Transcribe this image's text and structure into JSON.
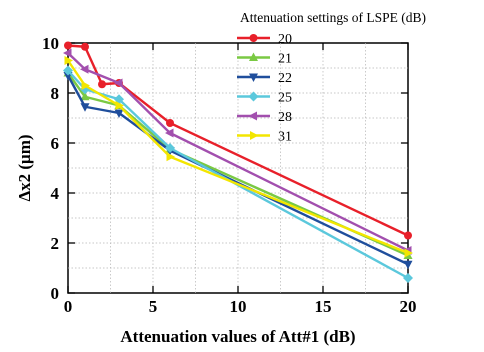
{
  "chart_data": {
    "type": "line",
    "xlabel": "Attenuation values of Att#1 (dB)",
    "ylabel": "Δx2 (μm)",
    "xlim": [
      0,
      20
    ],
    "ylim": [
      0,
      10
    ],
    "x_ticks": [
      "0",
      "5",
      "10",
      "15",
      "20"
    ],
    "y_ticks": [
      "0",
      "2",
      "4",
      "6",
      "8",
      "10"
    ],
    "grid": true,
    "legend_title": "Attenuation settings of LSPE (dB)",
    "legend_position": "top-right",
    "series": [
      {
        "name": "20",
        "color": "#e8202a",
        "marker": "circle",
        "x": [
          0,
          1,
          2,
          3,
          6,
          20
        ],
        "y": [
          9.9,
          9.85,
          8.35,
          8.4,
          6.8,
          2.3
        ]
      },
      {
        "name": "21",
        "color": "#7ac943",
        "marker": "triangle-up",
        "x": [
          0,
          1,
          3,
          6,
          20
        ],
        "y": [
          8.8,
          7.85,
          7.5,
          5.75,
          1.5
        ]
      },
      {
        "name": "22",
        "color": "#1f4e9c",
        "marker": "triangle-down",
        "x": [
          0,
          1,
          3,
          6,
          20
        ],
        "y": [
          8.7,
          7.45,
          7.2,
          5.7,
          1.15
        ]
      },
      {
        "name": "25",
        "color": "#5bc8dc",
        "marker": "diamond",
        "x": [
          0,
          1,
          3,
          6,
          20
        ],
        "y": [
          8.9,
          8.15,
          7.75,
          5.8,
          0.6
        ]
      },
      {
        "name": "28",
        "color": "#a24fae",
        "marker": "triangle-left",
        "x": [
          0,
          1,
          3,
          6,
          20
        ],
        "y": [
          9.6,
          8.95,
          8.4,
          6.4,
          1.7
        ]
      },
      {
        "name": "31",
        "color": "#f3e600",
        "marker": "triangle-right",
        "x": [
          0,
          1,
          3,
          6,
          20
        ],
        "y": [
          9.3,
          8.3,
          7.5,
          5.45,
          1.6
        ]
      }
    ]
  }
}
